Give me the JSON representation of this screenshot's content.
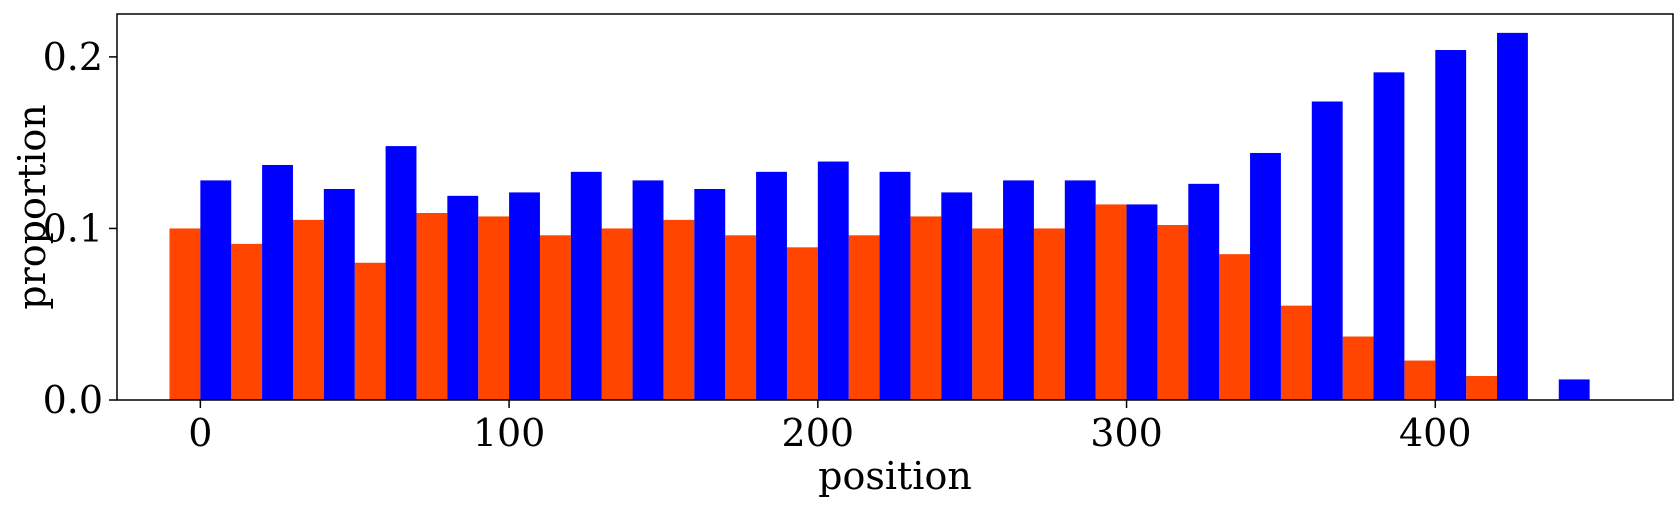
{
  "chart_data": {
    "type": "bar",
    "title": "",
    "xlabel": "position",
    "ylabel": "proportion",
    "xlim": [
      -27,
      477
    ],
    "ylim": [
      0,
      0.225
    ],
    "xticks": [
      0,
      100,
      200,
      300,
      400
    ],
    "xtick_labels": [
      "0",
      "100",
      "200",
      "300",
      "400"
    ],
    "yticks": [
      0.0,
      0.1,
      0.2
    ],
    "ytick_labels": [
      "0.0",
      "0.1",
      "0.2"
    ],
    "grid": false,
    "legend": "none",
    "bar_group_width": 20,
    "series": [
      {
        "color": "#ff4500",
        "offset": -5,
        "x": [
          0,
          20,
          40,
          60,
          80,
          100,
          120,
          140,
          160,
          180,
          200,
          220,
          240,
          260,
          280,
          300,
          320,
          340,
          360,
          380,
          400,
          420,
          440
        ],
        "values": [
          0.1,
          0.091,
          0.105,
          0.08,
          0.109,
          0.107,
          0.096,
          0.1,
          0.105,
          0.096,
          0.089,
          0.096,
          0.107,
          0.1,
          0.1,
          0.114,
          0.102,
          0.085,
          0.055,
          0.037,
          0.023,
          0.014,
          0.0
        ]
      },
      {
        "color": "#0000ff",
        "offset": 5,
        "x": [
          0,
          20,
          40,
          60,
          80,
          100,
          120,
          140,
          160,
          180,
          200,
          220,
          240,
          260,
          280,
          300,
          320,
          340,
          360,
          380,
          400,
          420,
          440
        ],
        "values": [
          0.128,
          0.137,
          0.123,
          0.148,
          0.119,
          0.121,
          0.133,
          0.128,
          0.123,
          0.133,
          0.139,
          0.133,
          0.121,
          0.128,
          0.128,
          0.114,
          0.126,
          0.144,
          0.174,
          0.191,
          0.204,
          0.214,
          0.012
        ]
      }
    ]
  }
}
